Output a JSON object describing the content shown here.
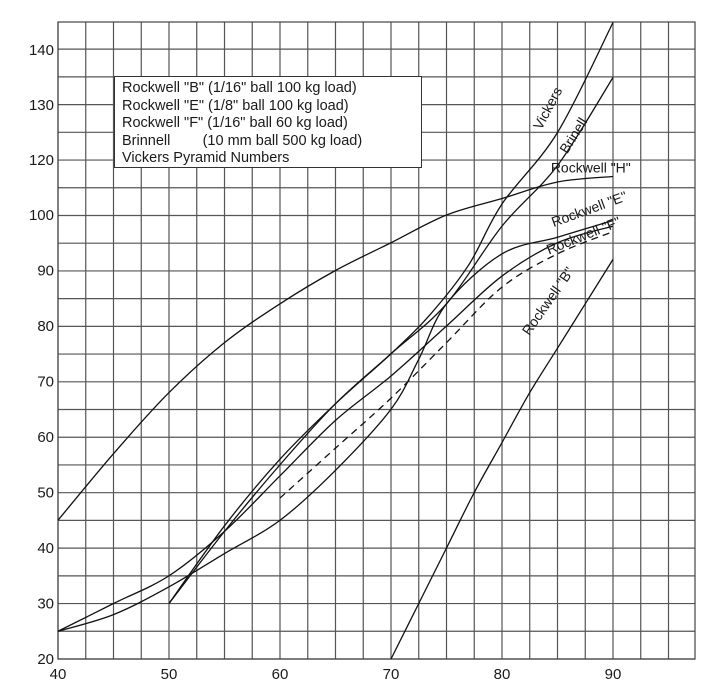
{
  "chart_data": {
    "type": "line",
    "title": "",
    "xlabel": "",
    "ylabel": "",
    "xlim": [
      40,
      97.5
    ],
    "ylim": [
      20,
      145
    ],
    "x_ticks": [
      40,
      50,
      60,
      70,
      80,
      90
    ],
    "y_ticks": [
      20,
      30,
      40,
      50,
      60,
      70,
      80,
      90,
      100,
      120,
      130,
      140
    ],
    "y_axis_note": "scale break between 100 and 120 (110 not labeled)",
    "grid": true,
    "legend": [
      "Rockwell \"B\" (1/16\" ball 100 kg load)",
      "Rockwell \"E\" (1/8\" ball 100 kg load)",
      "Rockwell \"F\" (1/16\" ball 60 kg load)",
      "Brinnell        (10 mm ball 500 kg load)",
      "Vickers Pyramid Numbers"
    ],
    "series": [
      {
        "name": "Rockwell \"H\"",
        "dashed": false,
        "points": [
          [
            40,
            45
          ],
          [
            45,
            57
          ],
          [
            50,
            68
          ],
          [
            55,
            77
          ],
          [
            60,
            84
          ],
          [
            65,
            90
          ],
          [
            70,
            95
          ],
          [
            75,
            100
          ],
          [
            80,
            106
          ],
          [
            85,
            112
          ],
          [
            90,
            114
          ]
        ]
      },
      {
        "name": "Rockwell \"E\"",
        "dashed": false,
        "points": [
          [
            40,
            25
          ],
          [
            45,
            30
          ],
          [
            50,
            35
          ],
          [
            55,
            43
          ],
          [
            60,
            53
          ],
          [
            65,
            63
          ],
          [
            70,
            71
          ],
          [
            75,
            80
          ],
          [
            80,
            89
          ],
          [
            85,
            95
          ],
          [
            90,
            98
          ]
        ]
      },
      {
        "name": "Rockwell \"F\"",
        "dashed": true,
        "points": [
          [
            60,
            49
          ],
          [
            65,
            58
          ],
          [
            70,
            67
          ],
          [
            75,
            77
          ],
          [
            80,
            87
          ],
          [
            85,
            93
          ],
          [
            90,
            97
          ]
        ]
      },
      {
        "name": "Rockwell \"F\" (solid lower)",
        "dashed": false,
        "points": [
          [
            40,
            25
          ],
          [
            45,
            28
          ],
          [
            50,
            33
          ],
          [
            55,
            39
          ],
          [
            60,
            45
          ],
          [
            65,
            54
          ],
          [
            70,
            65
          ],
          [
            72.5,
            74
          ],
          [
            75,
            84
          ],
          [
            80,
            93
          ],
          [
            85,
            96
          ],
          [
            90,
            99
          ]
        ]
      },
      {
        "name": "Rockwell \"B\"",
        "dashed": false,
        "points": [
          [
            70,
            20
          ],
          [
            72.5,
            30
          ],
          [
            75,
            40
          ],
          [
            77.5,
            50
          ],
          [
            80,
            59
          ],
          [
            82.5,
            68
          ],
          [
            85,
            76
          ],
          [
            87.5,
            84
          ],
          [
            90,
            92
          ]
        ]
      },
      {
        "name": "Brinell",
        "dashed": false,
        "points": [
          [
            50,
            30
          ],
          [
            55,
            43
          ],
          [
            60,
            55
          ],
          [
            65,
            66
          ],
          [
            70,
            75
          ],
          [
            75,
            84
          ],
          [
            80,
            98
          ],
          [
            85,
            118
          ],
          [
            90,
            135
          ]
        ]
      },
      {
        "name": "Vickers",
        "dashed": false,
        "points": [
          [
            50,
            30
          ],
          [
            55,
            44
          ],
          [
            60,
            56
          ],
          [
            65,
            66
          ],
          [
            70,
            75
          ],
          [
            73.5,
            82
          ],
          [
            77,
            91
          ],
          [
            80,
            104
          ],
          [
            85,
            125
          ],
          [
            90,
            145
          ]
        ]
      }
    ],
    "annotations": [
      {
        "text": "Vickers",
        "x": 84.5,
        "y": 129,
        "angle": -62
      },
      {
        "text": "Brinell",
        "x": 86.8,
        "y": 124,
        "angle": -58
      },
      {
        "text": "Rockwell \"H\"",
        "x": 88,
        "y": 115.5,
        "angle": 0
      },
      {
        "text": "Rockwell \"E\"",
        "x": 88,
        "y": 100.5,
        "angle": -20
      },
      {
        "text": "Rockwell \"F\"",
        "x": 87.5,
        "y": 95.5,
        "angle": -22
      },
      {
        "text": "Rockwell \"B\"",
        "x": 84.5,
        "y": 84,
        "angle": -55
      }
    ]
  }
}
